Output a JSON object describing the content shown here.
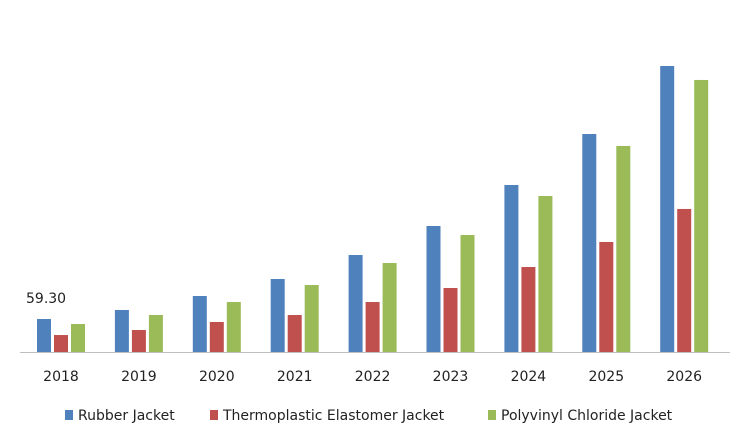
{
  "chart_data": {
    "type": "bar",
    "categories": [
      "2018",
      "2019",
      "2020",
      "2021",
      "2022",
      "2023",
      "2024",
      "2025",
      "2026"
    ],
    "series": [
      {
        "name": "Rubber Jacket",
        "color": "#4f81bd",
        "values": [
          59.3,
          75.5,
          100.6,
          131.2,
          174.3,
          226.4,
          300.1,
          391.7,
          513.9
        ],
        "value_labels": [
          "59.30",
          null,
          null,
          null,
          null,
          null,
          null,
          null,
          null
        ]
      },
      {
        "name": "Thermoplastic Elastomer Jacket",
        "color": "#c0504d",
        "values": [
          30.5,
          39.5,
          53.9,
          66.5,
          89.8,
          115.0,
          152.7,
          197.7,
          257.0
        ]
      },
      {
        "name": "Polyvinyl Chloride Jacket",
        "color": "#9bbb59",
        "values": [
          50.3,
          66.5,
          89.8,
          120.4,
          159.9,
          210.2,
          280.3,
          370.2,
          488.8
        ]
      }
    ]
  }
}
